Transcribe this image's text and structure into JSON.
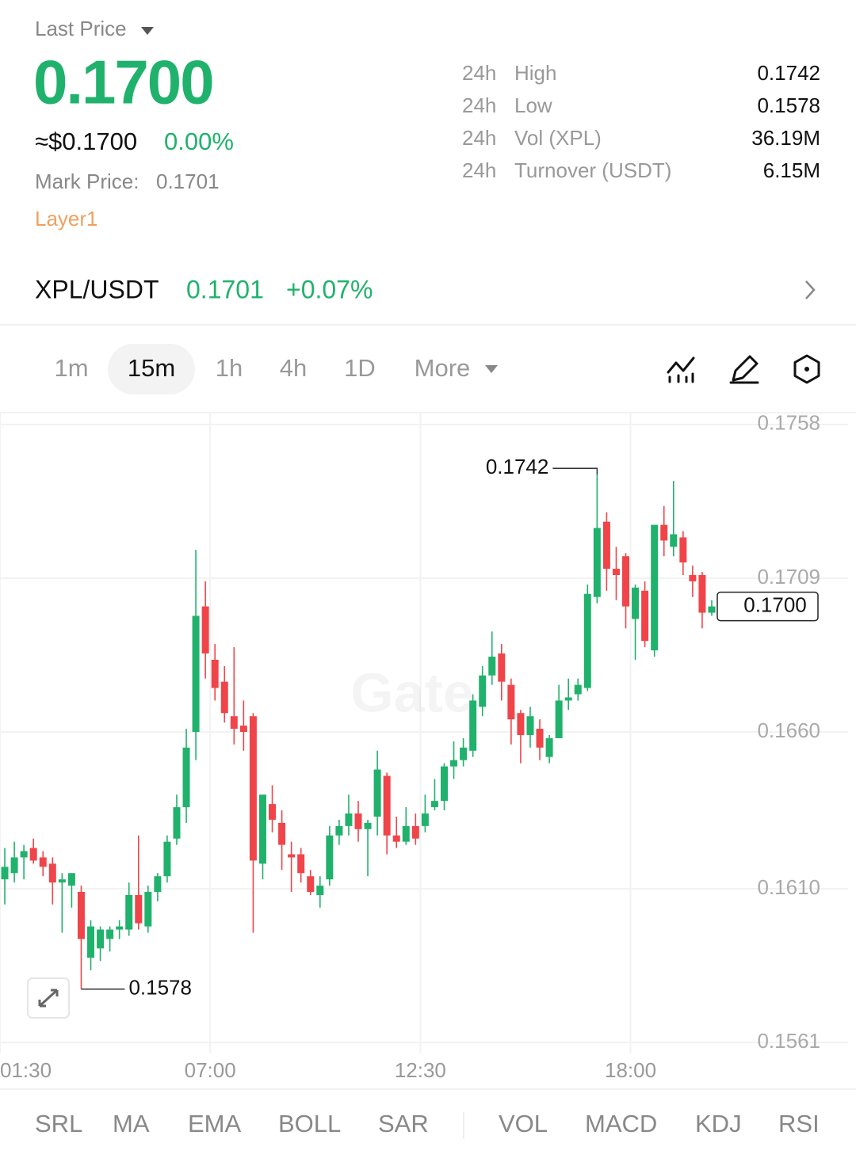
{
  "header": {
    "last_price_label": "Last Price",
    "last_price": "0.1700",
    "usd_price": "≈$0.1700",
    "change": "0.00%",
    "mark_price_label": "Mark Price:",
    "mark_price": "0.1701",
    "tag": "Layer1",
    "stats": [
      {
        "period": "24h",
        "label": "High",
        "value": "0.1742"
      },
      {
        "period": "24h",
        "label": "Low",
        "value": "0.1578"
      },
      {
        "period": "24h",
        "label": "Vol (XPL)",
        "value": "36.19M"
      },
      {
        "period": "24h",
        "label": "Turnover (USDT)",
        "value": "6.15M"
      }
    ]
  },
  "pair": {
    "name": "XPL/USDT",
    "price": "0.1701",
    "change": "+0.07%"
  },
  "timeframes": [
    "1m",
    "15m",
    "1h",
    "4h",
    "1D",
    "More"
  ],
  "indicators": [
    "SRL",
    "MA",
    "EMA",
    "BOLL",
    "SAR"
  ],
  "sub_indicators": [
    "VOL",
    "MACD",
    "KDJ",
    "RSI"
  ],
  "chart_data": {
    "type": "candlestick",
    "watermark": "Gate",
    "up_color": "#20b26c",
    "down_color": "#ef454a",
    "grid": true,
    "xlim": [
      1.5,
      23.9
    ],
    "xticks": [
      {
        "value": 1.5,
        "label": "01:30"
      },
      {
        "value": 7,
        "label": "07:00"
      },
      {
        "value": 12.5,
        "label": "12:30"
      },
      {
        "value": 18,
        "label": "18:00"
      }
    ],
    "ylim": [
      0.15575,
      0.17615
    ],
    "yticks": [
      0.1758,
      0.1709,
      {
        "value": 0.166,
        "label": "0.1660"
      },
      {
        "value": 0.161,
        "label": "0.1610"
      },
      0.1561
    ],
    "high_label": 0.1742,
    "low_label": 0.1578,
    "last_label": {
      "value": 0.17,
      "label": "0.1700"
    },
    "x": [
      1.625,
      1.875,
      2.125,
      2.375,
      2.625,
      2.875,
      3.125,
      3.375,
      3.625,
      3.875,
      4.125,
      4.375,
      4.625,
      4.875,
      5.125,
      5.375,
      5.625,
      5.875,
      6.125,
      6.375,
      6.625,
      6.875,
      7.125,
      7.375,
      7.625,
      7.875,
      8.125,
      8.375,
      8.625,
      8.875,
      9.125,
      9.375,
      9.625,
      9.875,
      10.125,
      10.375,
      10.625,
      10.875,
      11.125,
      11.375,
      11.625,
      11.875,
      12.125,
      12.375,
      12.625,
      12.875,
      13.125,
      13.375,
      13.625,
      13.875,
      14.125,
      14.375,
      14.625,
      14.875,
      15.125,
      15.375,
      15.625,
      15.875,
      16.125,
      16.375,
      16.625,
      16.875,
      17.125,
      17.375,
      17.625,
      17.875,
      18.125,
      18.375,
      18.625,
      18.875,
      19.125,
      19.375,
      19.625,
      19.875,
      20.125
    ],
    "open": [
      0.1613,
      0.1615,
      0.162,
      0.1623,
      0.162,
      0.1618,
      0.1612,
      0.1611,
      0.1609,
      0.1588,
      0.1591,
      0.1594,
      0.1597,
      0.1597,
      0.1608,
      0.1598,
      0.1609,
      0.1614,
      0.1626,
      0.1636,
      0.166,
      0.17,
      0.1683,
      0.1676,
      0.1665,
      0.1662,
      0.1665,
      0.1618,
      0.1637,
      0.1631,
      0.1621,
      0.1621,
      0.1614,
      0.1608,
      0.1613,
      0.1627,
      0.163,
      0.1634,
      0.1629,
      0.1633,
      0.1646,
      0.1627,
      0.1625,
      0.163,
      0.163,
      0.1636,
      0.1638,
      0.1649,
      0.1651,
      0.1654,
      0.1668,
      0.1678,
      0.1685,
      0.1675,
      0.1666,
      0.1659,
      0.1661,
      0.1652,
      0.1658,
      0.167,
      0.1672,
      0.1674,
      0.1703,
      0.1727,
      0.1712,
      0.1716,
      0.1696,
      0.1705,
      0.1686,
      0.1726,
      0.1719,
      0.1722,
      0.171,
      0.171,
      0.1698
    ],
    "high": [
      0.1623,
      0.1625,
      0.1624,
      0.1626,
      0.1622,
      0.162,
      0.1615,
      0.1614,
      0.1611,
      0.16,
      0.1598,
      0.1598,
      0.16,
      0.1612,
      0.1627,
      0.1611,
      0.1615,
      0.1627,
      0.164,
      0.1661,
      0.1718,
      0.1708,
      0.1688,
      0.1681,
      0.1687,
      0.167,
      0.1666,
      0.164,
      0.1643,
      0.1635,
      0.1625,
      0.1623,
      0.1616,
      0.1614,
      0.163,
      0.1632,
      0.164,
      0.1638,
      0.1632,
      0.1654,
      0.1647,
      0.1633,
      0.1636,
      0.1634,
      0.164,
      0.1645,
      0.165,
      0.1657,
      0.1658,
      0.1672,
      0.1681,
      0.1692,
      0.1688,
      0.1677,
      0.1667,
      0.1668,
      0.1664,
      0.1659,
      0.1675,
      0.1677,
      0.1677,
      0.1707,
      0.1742,
      0.173,
      0.1719,
      0.1717,
      0.1707,
      0.1708,
      0.1726,
      0.1732,
      0.174,
      0.1724,
      0.1713,
      0.1711,
      0.1702
    ],
    "low": [
      0.1605,
      0.1612,
      0.1613,
      0.1618,
      0.1614,
      0.1605,
      0.1596,
      0.1604,
      0.1578,
      0.1584,
      0.1587,
      0.159,
      0.1594,
      0.1595,
      0.1597,
      0.1596,
      0.1606,
      0.1612,
      0.1624,
      0.1631,
      0.1651,
      0.1677,
      0.167,
      0.1663,
      0.1656,
      0.1654,
      0.1596,
      0.1613,
      0.1628,
      0.1616,
      0.1609,
      0.1612,
      0.1608,
      0.1604,
      0.1611,
      0.1624,
      0.1627,
      0.1625,
      0.1614,
      0.1627,
      0.1621,
      0.1623,
      0.1624,
      0.1624,
      0.1628,
      0.1635,
      0.1635,
      0.1645,
      0.1649,
      0.1652,
      0.1665,
      0.1675,
      0.167,
      0.1656,
      0.165,
      0.1655,
      0.1651,
      0.165,
      0.1658,
      0.1667,
      0.167,
      0.1673,
      0.1701,
      0.1705,
      0.1702,
      0.1693,
      0.1683,
      0.1687,
      0.1684,
      0.1716,
      0.1716,
      0.171,
      0.1703,
      0.1693,
      0.1697
    ],
    "close": [
      0.1617,
      0.162,
      0.1622,
      0.1619,
      0.1617,
      0.1612,
      0.1613,
      0.1615,
      0.1594,
      0.1598,
      0.1597,
      0.1597,
      0.1598,
      0.1608,
      0.1599,
      0.1609,
      0.1614,
      0.1625,
      0.1636,
      0.1655,
      0.1697,
      0.1685,
      0.1674,
      0.1666,
      0.1661,
      0.166,
      0.1619,
      0.164,
      0.1632,
      0.1624,
      0.162,
      0.1615,
      0.1609,
      0.1611,
      0.1627,
      0.163,
      0.1634,
      0.1629,
      0.1631,
      0.1648,
      0.1627,
      0.1625,
      0.163,
      0.1626,
      0.1634,
      0.1638,
      0.1649,
      0.1651,
      0.1655,
      0.167,
      0.1678,
      0.1684,
      0.1676,
      0.1664,
      0.1659,
      0.1665,
      0.1655,
      0.1658,
      0.167,
      0.1671,
      0.1675,
      0.1704,
      0.1725,
      0.1712,
      0.171,
      0.17,
      0.1706,
      0.1689,
      0.1726,
      0.1721,
      0.1723,
      0.1714,
      0.1708,
      0.1698,
      0.17
    ]
  }
}
